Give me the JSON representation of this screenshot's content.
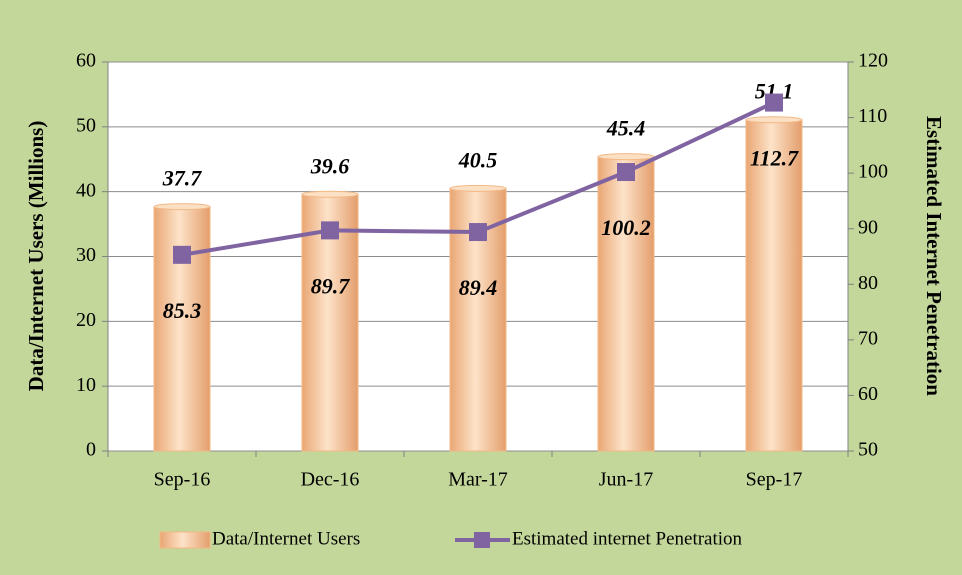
{
  "chart_data": {
    "type": "bar",
    "categories": [
      "Sep-16",
      "Dec-16",
      "Mar-17",
      "Jun-17",
      "Sep-17"
    ],
    "series": [
      {
        "name": "Data/Internet Users",
        "color": "#f2b886",
        "values": [
          37.7,
          39.6,
          40.5,
          45.4,
          51.1
        ]
      },
      {
        "name": "Estimated internet Penetration",
        "color": "#8064a2",
        "type": "line",
        "axis": "y2",
        "values": [
          85.3,
          89.7,
          89.4,
          100.2,
          112.7
        ]
      }
    ],
    "y_label": "Data/Internet Users (Millions)",
    "y2_label": "Estimated Internet  Penetration",
    "ylim": [
      0,
      60
    ],
    "yticks": [
      0,
      10,
      20,
      30,
      40,
      50,
      60
    ],
    "y2lim": [
      50,
      120
    ],
    "y2ticks": [
      50,
      60,
      70,
      80,
      90,
      100,
      110,
      120
    ],
    "grid": true,
    "legend": "bottom"
  }
}
